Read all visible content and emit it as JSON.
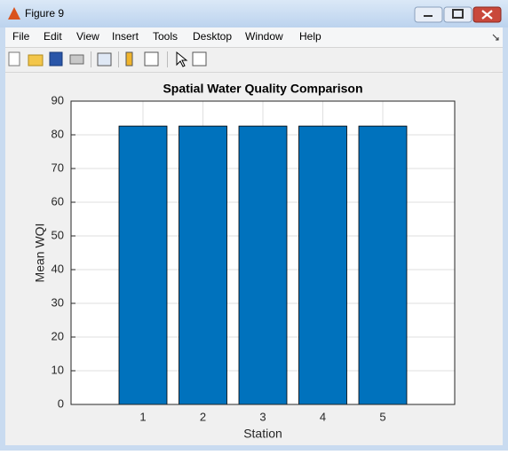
{
  "window": {
    "title": "Figure 9",
    "menu": [
      "File",
      "Edit",
      "View",
      "Insert",
      "Tools",
      "Desktop",
      "Window",
      "Help"
    ]
  },
  "chart_data": {
    "type": "bar",
    "title": "Spatial Water Quality Comparison",
    "x_label": "Station",
    "y_label": "Mean WQI",
    "x": [
      1,
      2,
      3,
      4,
      5
    ],
    "values": [
      82.6,
      82.6,
      82.6,
      82.6,
      82.6
    ],
    "color": "#0072bd",
    "xlim": [
      -0.2,
      6.2
    ],
    "xticks": [
      1,
      2,
      3,
      4,
      5
    ],
    "ylim": [
      0,
      90
    ],
    "yticks": [
      0,
      10,
      20,
      30,
      40,
      50,
      60,
      70,
      80,
      90
    ],
    "grid": true
  }
}
